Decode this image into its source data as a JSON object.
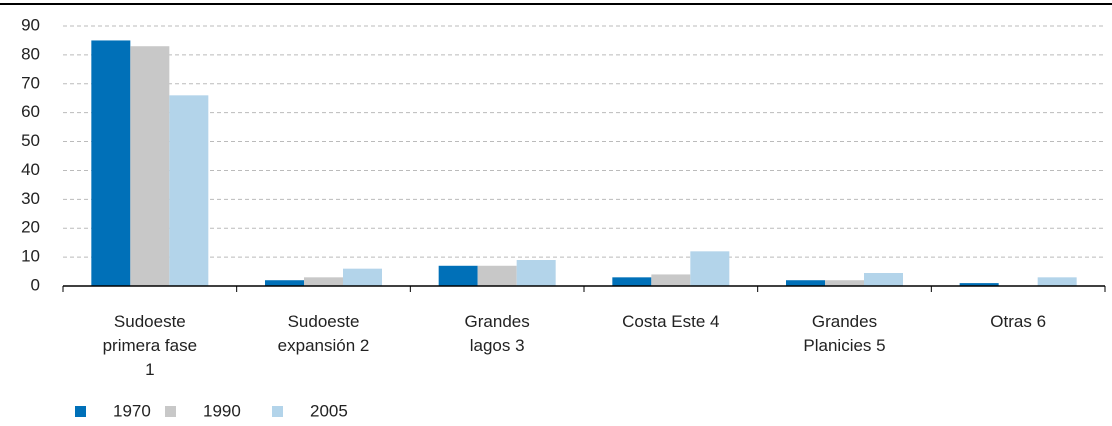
{
  "chart_data": {
    "type": "bar",
    "categories": [
      "Sudoeste primera fase 1",
      "Sudoeste expansión 2",
      "Grandes lagos 3",
      "Costa Este 4",
      "Grandes Planicies 5",
      "Otras 6"
    ],
    "series": [
      {
        "name": "1970",
        "color": "#0070b8",
        "values": [
          85,
          2,
          7,
          3,
          2,
          1
        ]
      },
      {
        "name": "1990",
        "color": "#c8c8c8",
        "values": [
          83,
          3,
          7,
          4,
          2,
          0
        ]
      },
      {
        "name": "2005",
        "color": "#b3d4ea",
        "values": [
          66,
          6,
          9,
          12,
          4.5,
          3
        ]
      }
    ],
    "ylim": [
      0,
      90
    ],
    "yticks": [
      0,
      10,
      20,
      30,
      40,
      50,
      60,
      70,
      80,
      90
    ],
    "grid": true
  }
}
